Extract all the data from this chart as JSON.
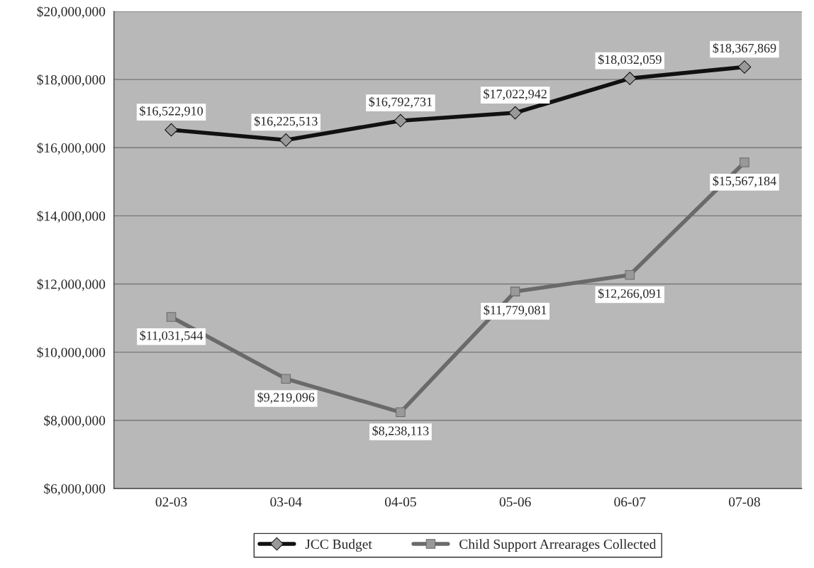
{
  "chart_data": {
    "type": "line",
    "categories": [
      "02-03",
      "03-04",
      "04-05",
      "05-06",
      "06-07",
      "07-08"
    ],
    "series": [
      {
        "name": "JCC Budget",
        "color": "#111111",
        "marker": "diamond",
        "values": [
          16522910,
          16225513,
          16792731,
          17022942,
          18032059,
          18367869
        ],
        "value_labels": [
          "$16,522,910",
          "$16,225,513",
          "$16,792,731",
          "$17,022,942",
          "$18,032,059",
          "$18,367,869"
        ]
      },
      {
        "name": "Child Support Arrearages Collected",
        "color": "#6a6a6a",
        "marker": "square",
        "values": [
          11031544,
          9219096,
          8238113,
          11779081,
          12266091,
          15567184
        ],
        "value_labels": [
          "$11,031,544",
          "$9,219,096",
          "$8,238,113",
          "$11,779,081",
          "$12,266,091",
          "$15,567,184"
        ]
      }
    ],
    "ylim": [
      6000000,
      20000000
    ],
    "yticks": [
      {
        "value": 6000000,
        "label": "$6,000,000"
      },
      {
        "value": 8000000,
        "label": "$8,000,000"
      },
      {
        "value": 10000000,
        "label": "$10,000,000"
      },
      {
        "value": 12000000,
        "label": "$12,000,000"
      },
      {
        "value": 14000000,
        "label": "$14,000,000"
      },
      {
        "value": 16000000,
        "label": "$16,000,000"
      },
      {
        "value": 18000000,
        "label": "$18,000,000"
      },
      {
        "value": 20000000,
        "label": "$20,000,000"
      }
    ],
    "grid": "y",
    "legend": "bottom",
    "line_style": "solid"
  }
}
